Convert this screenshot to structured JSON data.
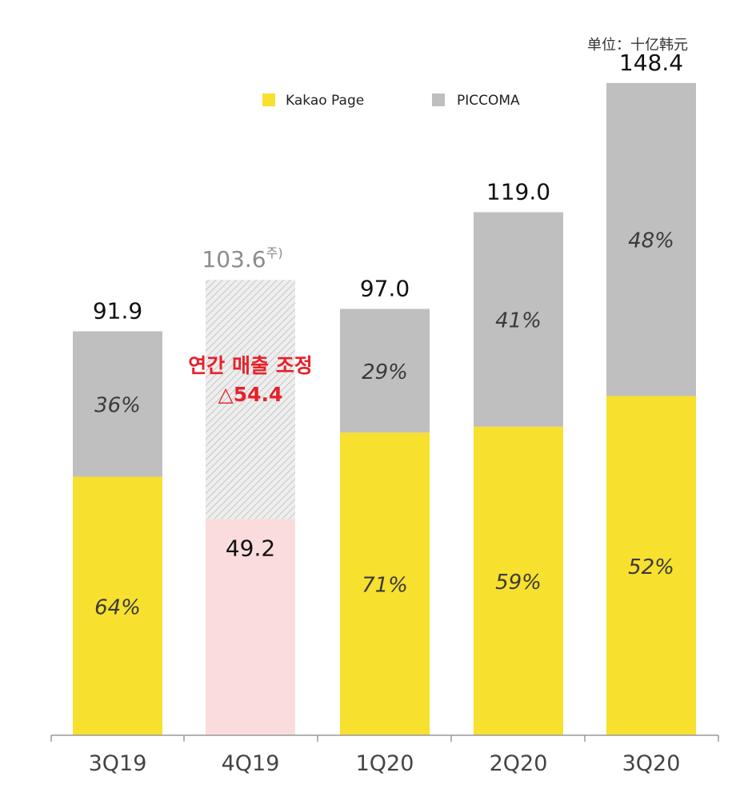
{
  "chart_data": {
    "type": "bar",
    "stacked": true,
    "categories": [
      "3Q19",
      "4Q19",
      "1Q20",
      "2Q20",
      "3Q20"
    ],
    "unit_label": "单位：十亿韩元",
    "legend_placement": "top",
    "series": [
      {
        "name": "Kakao Page",
        "color": "#f7e02e",
        "percent_labels": [
          "64%",
          "",
          "71%",
          "59%",
          "52%"
        ]
      },
      {
        "name": "PICCOMA",
        "color": "#c0bfbf",
        "percent_labels": [
          "36%",
          "",
          "29%",
          "41%",
          "48%"
        ]
      }
    ],
    "kakao_share": [
      0.64,
      null,
      0.71,
      0.59,
      0.52
    ],
    "totals": [
      91.9,
      103.6,
      97.0,
      119.0,
      148.4
    ],
    "total_labels": [
      "91.9",
      "103.6",
      "97.0",
      "119.0",
      "148.4"
    ],
    "total_label_footnote": [
      "",
      "주)",
      "",
      "",
      ""
    ],
    "adjusted": {
      "category": "4Q19",
      "actual_value": 49.2,
      "actual_label": "49.2",
      "actual_color": "#fbdcdc",
      "adjustment_note_line1": "연간 매출 조정",
      "adjustment_note_line2": "△54.4"
    },
    "ylim": [
      0,
      160
    ],
    "grid": false
  }
}
